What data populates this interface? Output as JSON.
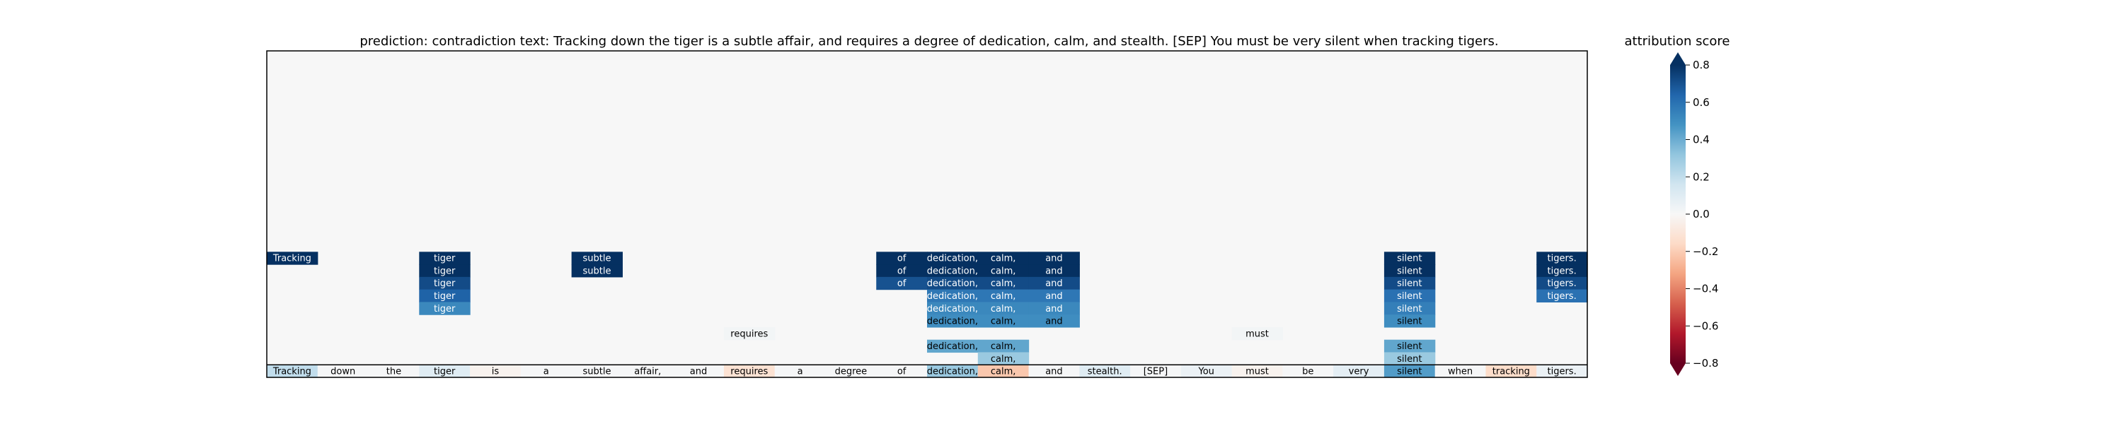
{
  "chart_data": {
    "type": "heatmap",
    "title": "prediction:  contradiction     text:  Tracking down the tiger is a subtle affair, and requires a degree of dedication, calm, and stealth. [SEP] You must be very silent when tracking tigers.",
    "colorbar": {
      "label": "attribution score",
      "range": [
        -0.8,
        0.8
      ],
      "ticks": [
        "0.8",
        "0.6",
        "0.4",
        "0.2",
        "0.0",
        "−0.2",
        "−0.4",
        "−0.6",
        "−0.8"
      ],
      "colormap": "RdBu"
    },
    "tokens": [
      "Tracking",
      "down",
      "the",
      "tiger",
      "is",
      "a",
      "subtle",
      "affair,",
      "and",
      "requires",
      "a",
      "degree",
      "of",
      "dedication,",
      "calm,",
      "and",
      "stealth.",
      "[SEP]",
      "You",
      "must",
      "be",
      "very",
      "silent",
      "when",
      "tracking",
      "tigers."
    ],
    "num_rows": 26,
    "cells": [
      {
        "row": 16,
        "col": 0,
        "value": 0.85
      },
      {
        "row": 16,
        "col": 3,
        "value": 0.85
      },
      {
        "row": 17,
        "col": 3,
        "value": 0.82
      },
      {
        "row": 18,
        "col": 3,
        "value": 0.72
      },
      {
        "row": 19,
        "col": 3,
        "value": 0.65
      },
      {
        "row": 20,
        "col": 3,
        "value": 0.52
      },
      {
        "row": 16,
        "col": 6,
        "value": 0.85
      },
      {
        "row": 17,
        "col": 6,
        "value": 0.85
      },
      {
        "row": 16,
        "col": 12,
        "value": 0.85
      },
      {
        "row": 17,
        "col": 12,
        "value": 0.85
      },
      {
        "row": 18,
        "col": 12,
        "value": 0.7
      },
      {
        "row": 16,
        "col": 13,
        "value": 0.85
      },
      {
        "row": 17,
        "col": 13,
        "value": 0.85
      },
      {
        "row": 18,
        "col": 13,
        "value": 0.72
      },
      {
        "row": 19,
        "col": 13,
        "value": 0.58
      },
      {
        "row": 20,
        "col": 13,
        "value": 0.52
      },
      {
        "row": 21,
        "col": 13,
        "value": 0.5
      },
      {
        "row": 16,
        "col": 14,
        "value": 0.85
      },
      {
        "row": 17,
        "col": 14,
        "value": 0.85
      },
      {
        "row": 18,
        "col": 14,
        "value": 0.72
      },
      {
        "row": 19,
        "col": 14,
        "value": 0.58
      },
      {
        "row": 20,
        "col": 14,
        "value": 0.52
      },
      {
        "row": 21,
        "col": 14,
        "value": 0.5
      },
      {
        "row": 16,
        "col": 15,
        "value": 0.85
      },
      {
        "row": 17,
        "col": 15,
        "value": 0.85
      },
      {
        "row": 18,
        "col": 15,
        "value": 0.72
      },
      {
        "row": 19,
        "col": 15,
        "value": 0.58
      },
      {
        "row": 20,
        "col": 15,
        "value": 0.52
      },
      {
        "row": 21,
        "col": 15,
        "value": 0.5
      },
      {
        "row": 16,
        "col": 22,
        "value": 0.85
      },
      {
        "row": 17,
        "col": 22,
        "value": 0.85
      },
      {
        "row": 18,
        "col": 22,
        "value": 0.72
      },
      {
        "row": 19,
        "col": 22,
        "value": 0.6
      },
      {
        "row": 20,
        "col": 22,
        "value": 0.55
      },
      {
        "row": 21,
        "col": 22,
        "value": 0.5
      },
      {
        "row": 16,
        "col": 25,
        "value": 0.85
      },
      {
        "row": 17,
        "col": 25,
        "value": 0.85
      },
      {
        "row": 18,
        "col": 25,
        "value": 0.72
      },
      {
        "row": 19,
        "col": 25,
        "value": 0.6
      },
      {
        "row": 22,
        "col": 9,
        "value": 0.02
      },
      {
        "row": 22,
        "col": 19,
        "value": 0.02
      },
      {
        "row": 23,
        "col": 13,
        "value": 0.42
      },
      {
        "row": 23,
        "col": 14,
        "value": 0.42
      },
      {
        "row": 23,
        "col": 22,
        "value": 0.42
      },
      {
        "row": 24,
        "col": 14,
        "value": 0.3
      },
      {
        "row": 24,
        "col": 22,
        "value": 0.3
      },
      {
        "row": 25,
        "col": 0,
        "value": 0.2
      },
      {
        "row": 25,
        "col": 1,
        "value": 0.01
      },
      {
        "row": 25,
        "col": 2,
        "value": 0.01
      },
      {
        "row": 25,
        "col": 3,
        "value": 0.1
      },
      {
        "row": 25,
        "col": 4,
        "value": -0.03
      },
      {
        "row": 25,
        "col": 5,
        "value": 0.01
      },
      {
        "row": 25,
        "col": 6,
        "value": 0.01
      },
      {
        "row": 25,
        "col": 7,
        "value": 0.01
      },
      {
        "row": 25,
        "col": 8,
        "value": 0.01
      },
      {
        "row": 25,
        "col": 9,
        "value": -0.12
      },
      {
        "row": 25,
        "col": 10,
        "value": 0.01
      },
      {
        "row": 25,
        "col": 11,
        "value": 0.01
      },
      {
        "row": 25,
        "col": 12,
        "value": 0.01
      },
      {
        "row": 25,
        "col": 13,
        "value": 0.3
      },
      {
        "row": 25,
        "col": 14,
        "value": -0.22
      },
      {
        "row": 25,
        "col": 15,
        "value": 0.01
      },
      {
        "row": 25,
        "col": 16,
        "value": 0.1
      },
      {
        "row": 25,
        "col": 17,
        "value": 0.01
      },
      {
        "row": 25,
        "col": 18,
        "value": 0.05
      },
      {
        "row": 25,
        "col": 19,
        "value": -0.03
      },
      {
        "row": 25,
        "col": 20,
        "value": 0.01
      },
      {
        "row": 25,
        "col": 21,
        "value": 0.08
      },
      {
        "row": 25,
        "col": 22,
        "value": 0.45
      },
      {
        "row": 25,
        "col": 23,
        "value": 0.01
      },
      {
        "row": 25,
        "col": 24,
        "value": -0.15
      },
      {
        "row": 25,
        "col": 25,
        "value": 0.05
      }
    ]
  }
}
